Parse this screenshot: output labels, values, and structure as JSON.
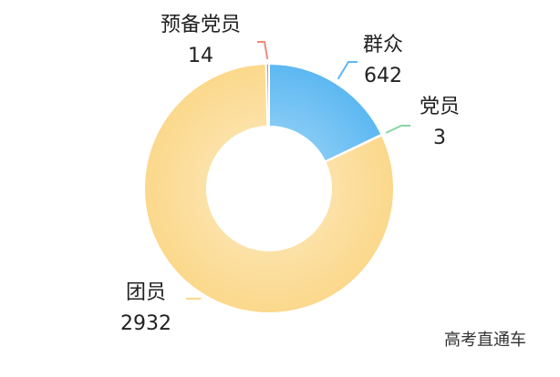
{
  "chart_data": {
    "type": "pie",
    "categories": [
      "群众",
      "党员",
      "团员",
      "预备党员"
    ],
    "values": [
      642,
      3,
      2932,
      14
    ],
    "colors": [
      "#5cb8f2",
      "#86d6a6",
      "#fbd88b",
      "#f0897a"
    ]
  },
  "watermark": "高考直通车"
}
